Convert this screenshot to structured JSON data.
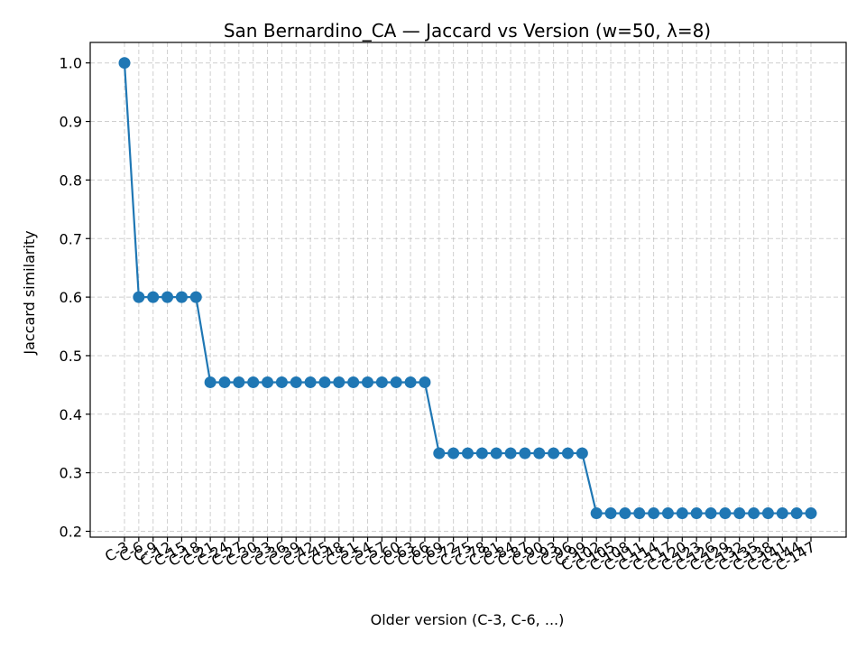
{
  "chart_data": {
    "type": "line",
    "title": "San Bernardino_CA — Jaccard vs Version (w=50, λ=8)",
    "xlabel": "Older version (C-3, C-6, ...)",
    "ylabel": "Jaccard similarity",
    "ylim": [
      0.19,
      1.035
    ],
    "yticks": [
      "0.2",
      "0.3",
      "0.4",
      "0.5",
      "0.6",
      "0.7",
      "0.8",
      "0.9",
      "1.0"
    ],
    "grid": true,
    "color": "#1f77b4",
    "categories": [
      "C-3",
      "C-6",
      "C-9",
      "C-12",
      "C-15",
      "C-18",
      "C-21",
      "C-24",
      "C-27",
      "C-30",
      "C-33",
      "C-36",
      "C-39",
      "C-42",
      "C-45",
      "C-48",
      "C-51",
      "C-54",
      "C-57",
      "C-60",
      "C-63",
      "C-66",
      "C-69",
      "C-72",
      "C-75",
      "C-78",
      "C-81",
      "C-84",
      "C-87",
      "C-90",
      "C-93",
      "C-96",
      "C-99",
      "C-102",
      "C-105",
      "C-108",
      "C-111",
      "C-114",
      "C-117",
      "C-120",
      "C-123",
      "C-126",
      "C-129",
      "C-132",
      "C-135",
      "C-138",
      "C-141",
      "C-144",
      "C-147"
    ],
    "values": [
      1.0,
      0.6,
      0.6,
      0.6,
      0.6,
      0.6,
      0.4545,
      0.4545,
      0.4545,
      0.4545,
      0.4545,
      0.4545,
      0.4545,
      0.4545,
      0.4545,
      0.4545,
      0.4545,
      0.4545,
      0.4545,
      0.4545,
      0.4545,
      0.4545,
      0.3333,
      0.3333,
      0.3333,
      0.3333,
      0.3333,
      0.3333,
      0.3333,
      0.3333,
      0.3333,
      0.3333,
      0.3333,
      0.2308,
      0.2308,
      0.2308,
      0.2308,
      0.2308,
      0.2308,
      0.2308,
      0.2308,
      0.2308,
      0.2308,
      0.2308,
      0.2308,
      0.2308,
      0.2308,
      0.2308,
      0.2308
    ]
  }
}
